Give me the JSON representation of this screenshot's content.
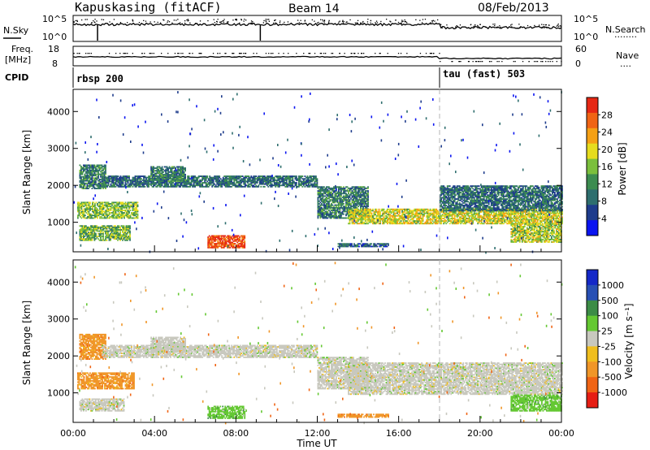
{
  "header": {
    "station": "Kapuskasing (fitACF)",
    "beam": "Beam 14",
    "date": "08/Feb/2013"
  },
  "colors": {
    "power": [
      "#0a14f0",
      "#1e3c8c",
      "#2e6e6e",
      "#3c8c50",
      "#7bbf3c",
      "#e6dc1e",
      "#f5a014",
      "#f06414",
      "#e62814"
    ],
    "velocity": [
      "#1428c8",
      "#2850b4",
      "#3c8c46",
      "#64c832",
      "#c8c8be",
      "#f0be1e",
      "#f09628",
      "#f06414",
      "#e61e14"
    ]
  },
  "noise_panel": {
    "left_label": "N.Sky",
    "left_ticks": [
      "10^5",
      "10^0"
    ],
    "right_ticks": [
      "10^5",
      "10^0"
    ],
    "right_label": "N.Search",
    "right_legend": "........"
  },
  "freq_panel": {
    "left_label_top": "Freq.",
    "left_label_bottom": "[MHz]",
    "left_ticks": [
      "18",
      "8"
    ],
    "right_ticks": [
      "60",
      "0"
    ],
    "right_label": "Nave",
    "right_legend": "...."
  },
  "cpid": {
    "label": "CPID",
    "programs": [
      {
        "name": "rbsp 200",
        "start_hour": 0
      },
      {
        "name": "tau (fast) 503",
        "start_hour": 18
      }
    ]
  },
  "chart_data": [
    {
      "type": "heatmap",
      "name": "power",
      "ylabel": "Slant Range [km]",
      "yticks": [
        "1000",
        "2000",
        "3000",
        "4000"
      ],
      "ylim": [
        200,
        4600
      ],
      "xlim": [
        0,
        24
      ],
      "colorbar_label": "Power [dB]",
      "colorbar_ticks": [
        "4",
        "8",
        "12",
        "16",
        "20",
        "24",
        "28"
      ],
      "colorbar_range": [
        0,
        32
      ],
      "bands": [
        {
          "t": [
            0.3,
            1.6
          ],
          "r": [
            1900,
            2550
          ],
          "level": 0.3
        },
        {
          "t": [
            0.2,
            3.2
          ],
          "r": [
            1100,
            1550
          ],
          "level": 0.5
        },
        {
          "t": [
            0.3,
            2.8
          ],
          "r": [
            500,
            900
          ],
          "level": 0.45
        },
        {
          "t": [
            1.4,
            12.0
          ],
          "r": [
            1950,
            2250
          ],
          "level": 0.25
        },
        {
          "t": [
            3.8,
            5.5
          ],
          "r": [
            2100,
            2500
          ],
          "level": 0.3
        },
        {
          "t": [
            12.0,
            14.5
          ],
          "r": [
            1100,
            1950
          ],
          "level": 0.3
        },
        {
          "t": [
            13.5,
            24.0
          ],
          "r": [
            950,
            1350
          ],
          "level": 0.6
        },
        {
          "t": [
            18.0,
            24.0
          ],
          "r": [
            1300,
            2000
          ],
          "level": 0.25
        },
        {
          "t": [
            21.5,
            24.0
          ],
          "r": [
            450,
            950
          ],
          "level": 0.55
        },
        {
          "t": [
            13.0,
            15.5
          ],
          "r": [
            330,
            430
          ],
          "level": 0.2
        },
        {
          "t": [
            6.6,
            8.4
          ],
          "r": [
            300,
            650
          ],
          "level": 0.95
        }
      ]
    },
    {
      "type": "heatmap",
      "name": "velocity",
      "ylabel": "Slant Range [km]",
      "yticks": [
        "1000",
        "2000",
        "3000",
        "4000"
      ],
      "ylim": [
        200,
        4600
      ],
      "xlim": [
        0,
        24
      ],
      "xlabel": "Time UT",
      "xticks": [
        "00:00",
        "04:00",
        "08:00",
        "12:00",
        "16:00",
        "20:00",
        "00:00"
      ],
      "colorbar_label": "Velocity [m s⁻¹]",
      "colorbar_ticks": [
        "1000",
        "500",
        "100",
        "25",
        "-25",
        "-100",
        "-500",
        "-1000"
      ],
      "bands": [
        {
          "t": [
            0.3,
            1.6
          ],
          "r": [
            1900,
            2600
          ],
          "v": "orange"
        },
        {
          "t": [
            0.2,
            3.0
          ],
          "r": [
            1100,
            1550
          ],
          "v": "orange"
        },
        {
          "t": [
            0.3,
            2.5
          ],
          "r": [
            500,
            850
          ],
          "v": "grey"
        },
        {
          "t": [
            1.4,
            12.0
          ],
          "r": [
            1950,
            2300
          ],
          "v": "grey"
        },
        {
          "t": [
            3.8,
            5.5
          ],
          "r": [
            2100,
            2500
          ],
          "v": "grey"
        },
        {
          "t": [
            12.0,
            14.5
          ],
          "r": [
            1100,
            1950
          ],
          "v": "grey"
        },
        {
          "t": [
            13.5,
            24.0
          ],
          "r": [
            950,
            1800
          ],
          "v": "grey"
        },
        {
          "t": [
            21.5,
            24.0
          ],
          "r": [
            500,
            950
          ],
          "v": "green"
        },
        {
          "t": [
            6.6,
            8.4
          ],
          "r": [
            300,
            650
          ],
          "v": "green"
        },
        {
          "t": [
            13.0,
            15.5
          ],
          "r": [
            330,
            430
          ],
          "v": "orange"
        }
      ]
    }
  ]
}
